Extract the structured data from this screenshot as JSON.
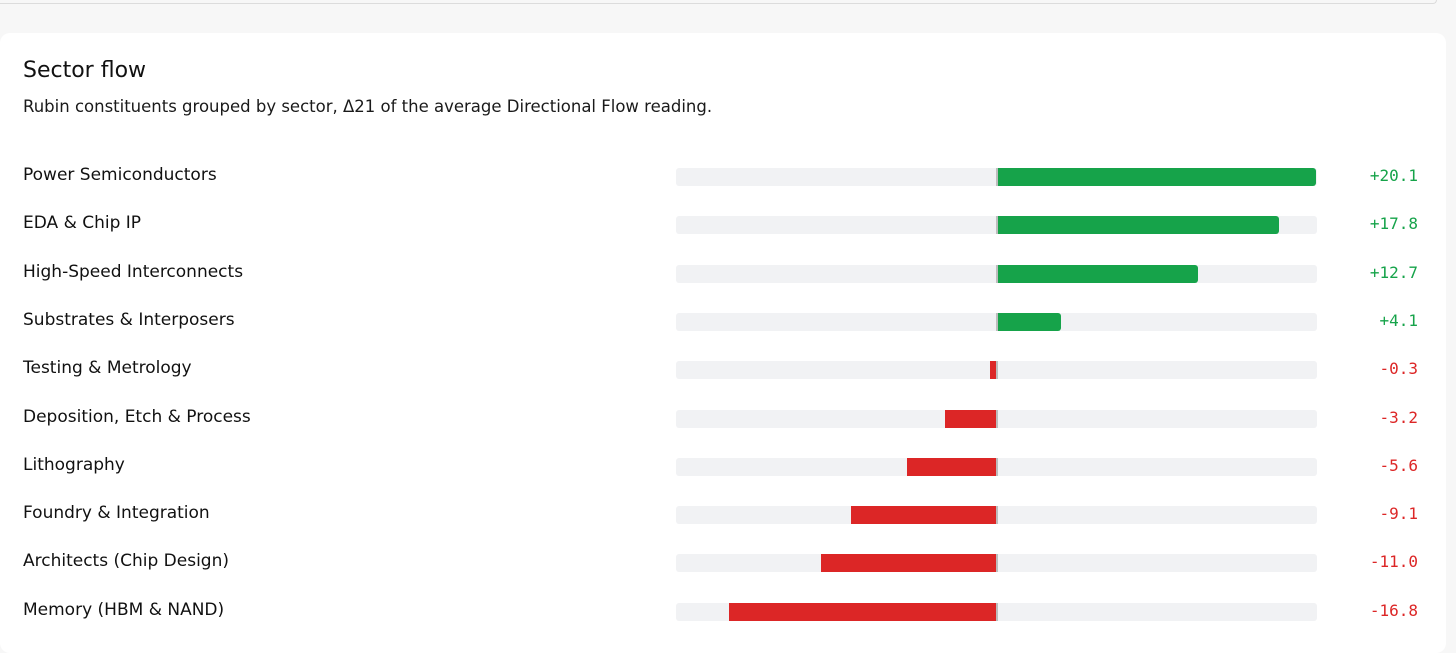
{
  "colors": {
    "positive": "#16a34a",
    "negative": "#dc2626",
    "track": "#f1f2f4"
  },
  "chart_data": {
    "type": "bar",
    "orientation": "horizontal",
    "title": "Sector flow",
    "subtitle": "Rubin constituents grouped by sector, Δ21 of the average Directional Flow reading.",
    "xlim": [
      -20.1,
      20.1
    ],
    "categories": [
      "Power Semiconductors",
      "EDA & Chip IP",
      "High-Speed Interconnects",
      "Substrates & Interposers",
      "Testing & Metrology",
      "Deposition, Etch & Process",
      "Lithography",
      "Foundry & Integration",
      "Architects (Chip Design)",
      "Memory (HBM & NAND)"
    ],
    "values": [
      20.1,
      17.8,
      12.7,
      4.1,
      -0.3,
      -3.2,
      -5.6,
      -9.1,
      -11.0,
      -16.8
    ],
    "value_labels": [
      "+20.1",
      "+17.8",
      "+12.7",
      "+4.1",
      "-0.3",
      "-3.2",
      "-5.6",
      "-9.1",
      "-11.0",
      "-16.8"
    ]
  }
}
